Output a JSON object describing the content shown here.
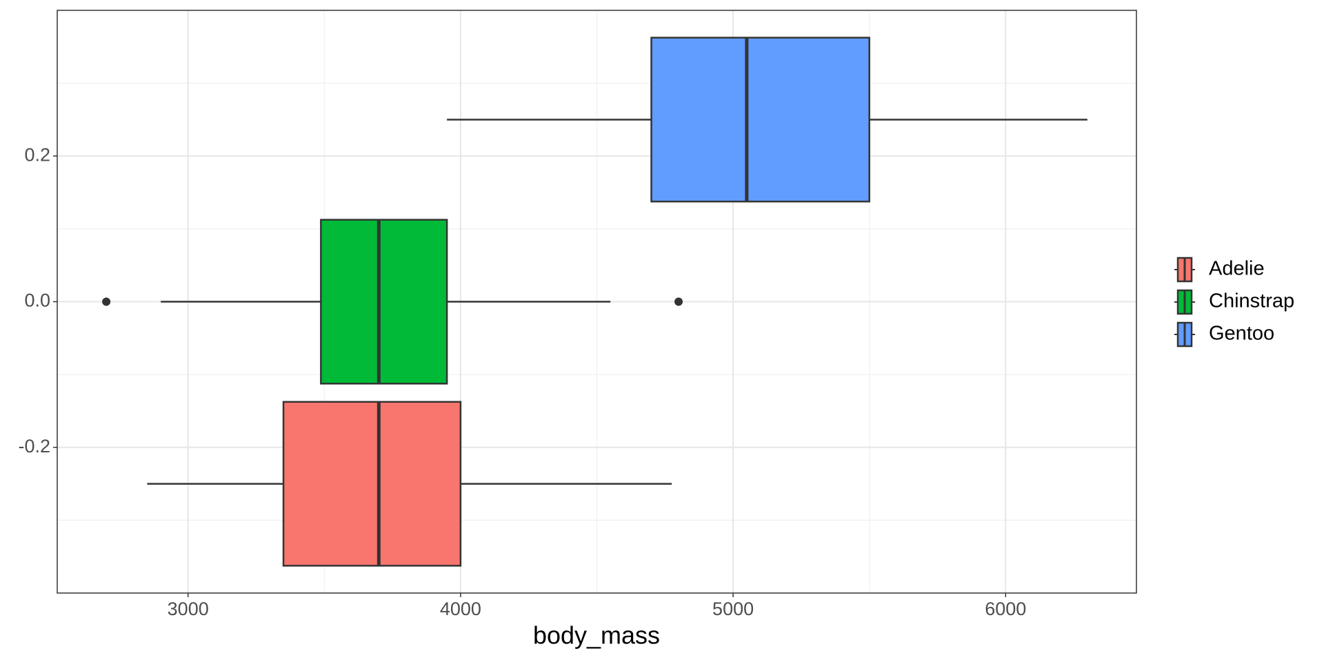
{
  "chart_data": {
    "type": "boxplot",
    "orientation": "horizontal",
    "x_label": "body_mass",
    "xlim": [
      2520,
      6480
    ],
    "xticks": [
      3000,
      4000,
      5000,
      6000
    ],
    "xminor": [
      3500,
      4500,
      5500
    ],
    "ylim": [
      -0.4,
      0.4
    ],
    "yticks": [
      -0.2,
      {
        "value": 0,
        "label": "0.0"
      },
      0.2
    ],
    "yminor": [
      -0.3,
      -0.1,
      0.1,
      0.3
    ],
    "grid": true,
    "legend": "right",
    "series": [
      {
        "name": "Adelie",
        "color": "#F8766D",
        "y": -0.25,
        "box_bottom": -0.3625,
        "box_top": -0.1375,
        "whisker_low": 2850,
        "q1": 3350,
        "median": 3700,
        "q3": 4000,
        "whisker_high": 4775,
        "outliers": []
      },
      {
        "name": "Chinstrap",
        "color": "#00BA38",
        "y": 0,
        "box_bottom": -0.1125,
        "box_top": 0.1125,
        "whisker_low": 2900,
        "q1": 3487.5,
        "median": 3700,
        "q3": 3950,
        "whisker_high": 4550,
        "outliers": [
          2700,
          4800
        ]
      },
      {
        "name": "Gentoo",
        "color": "#619CFF",
        "y": 0.25,
        "box_bottom": 0.1375,
        "box_top": 0.3625,
        "whisker_low": 3950,
        "q1": 4700,
        "median": 5050,
        "q3": 5500,
        "whisker_high": 6300,
        "outliers": []
      }
    ]
  }
}
